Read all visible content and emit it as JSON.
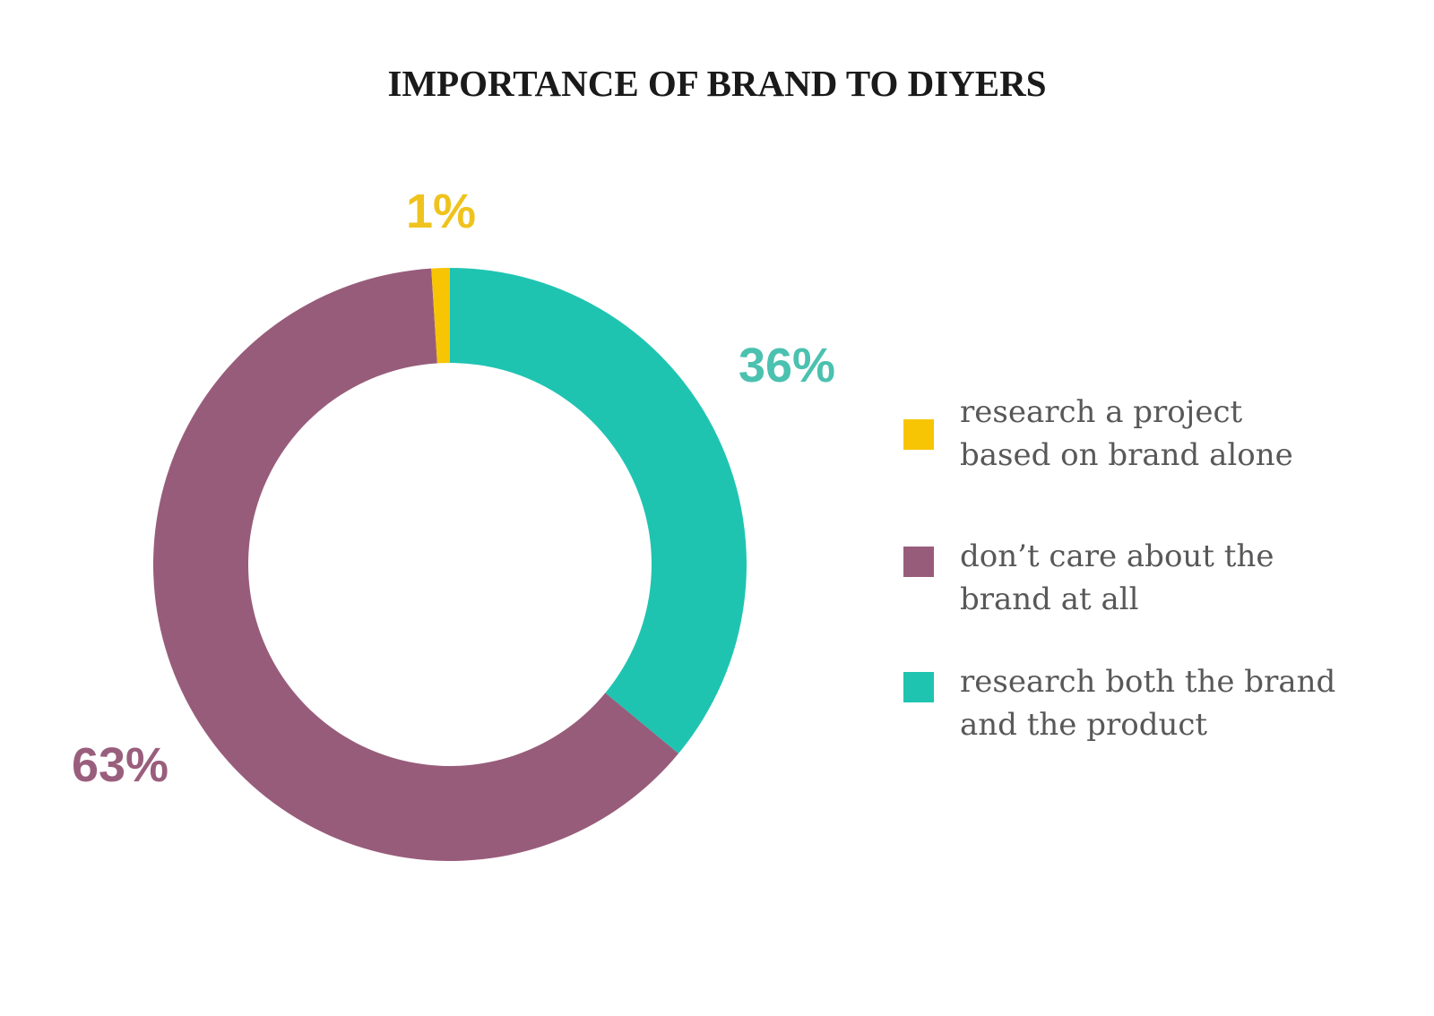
{
  "title": {
    "text": "IMPORTANCE OF BRAND TO DIYERS",
    "color": "#1A1A1A"
  },
  "chart_data": {
    "type": "pie",
    "variant": "donut",
    "title": "IMPORTANCE OF BRAND TO DIYERS",
    "unit": "%",
    "segments": [
      {
        "label": "research a project based on brand alone",
        "value": 1,
        "pct_label": "1%",
        "color": "#F7C504",
        "label_color": "#EFC31D"
      },
      {
        "label": "don’t care about the brand at all",
        "value": 63,
        "pct_label": "63%",
        "color": "#985C7B",
        "label_color": "#9A5E7D"
      },
      {
        "label": "research both the brand and the product",
        "value": 36,
        "pct_label": "36%",
        "color": "#1FC4B1",
        "label_color": "#4BC1B0"
      }
    ],
    "draw_order_clockwise_from_top": [
      2,
      1,
      0
    ],
    "legend_position": "right",
    "hole_ratio": 0.68
  },
  "legend": {
    "text_color": "#58585A",
    "items": [
      {
        "lines": [
          "research a project",
          "based on brand alone"
        ],
        "color": "#F7C504"
      },
      {
        "lines": [
          "don’t care about the",
          "brand at all"
        ],
        "color": "#985C7B"
      },
      {
        "lines": [
          "research both the brand",
          "and the product"
        ],
        "color": "#1FC4B1"
      }
    ]
  }
}
